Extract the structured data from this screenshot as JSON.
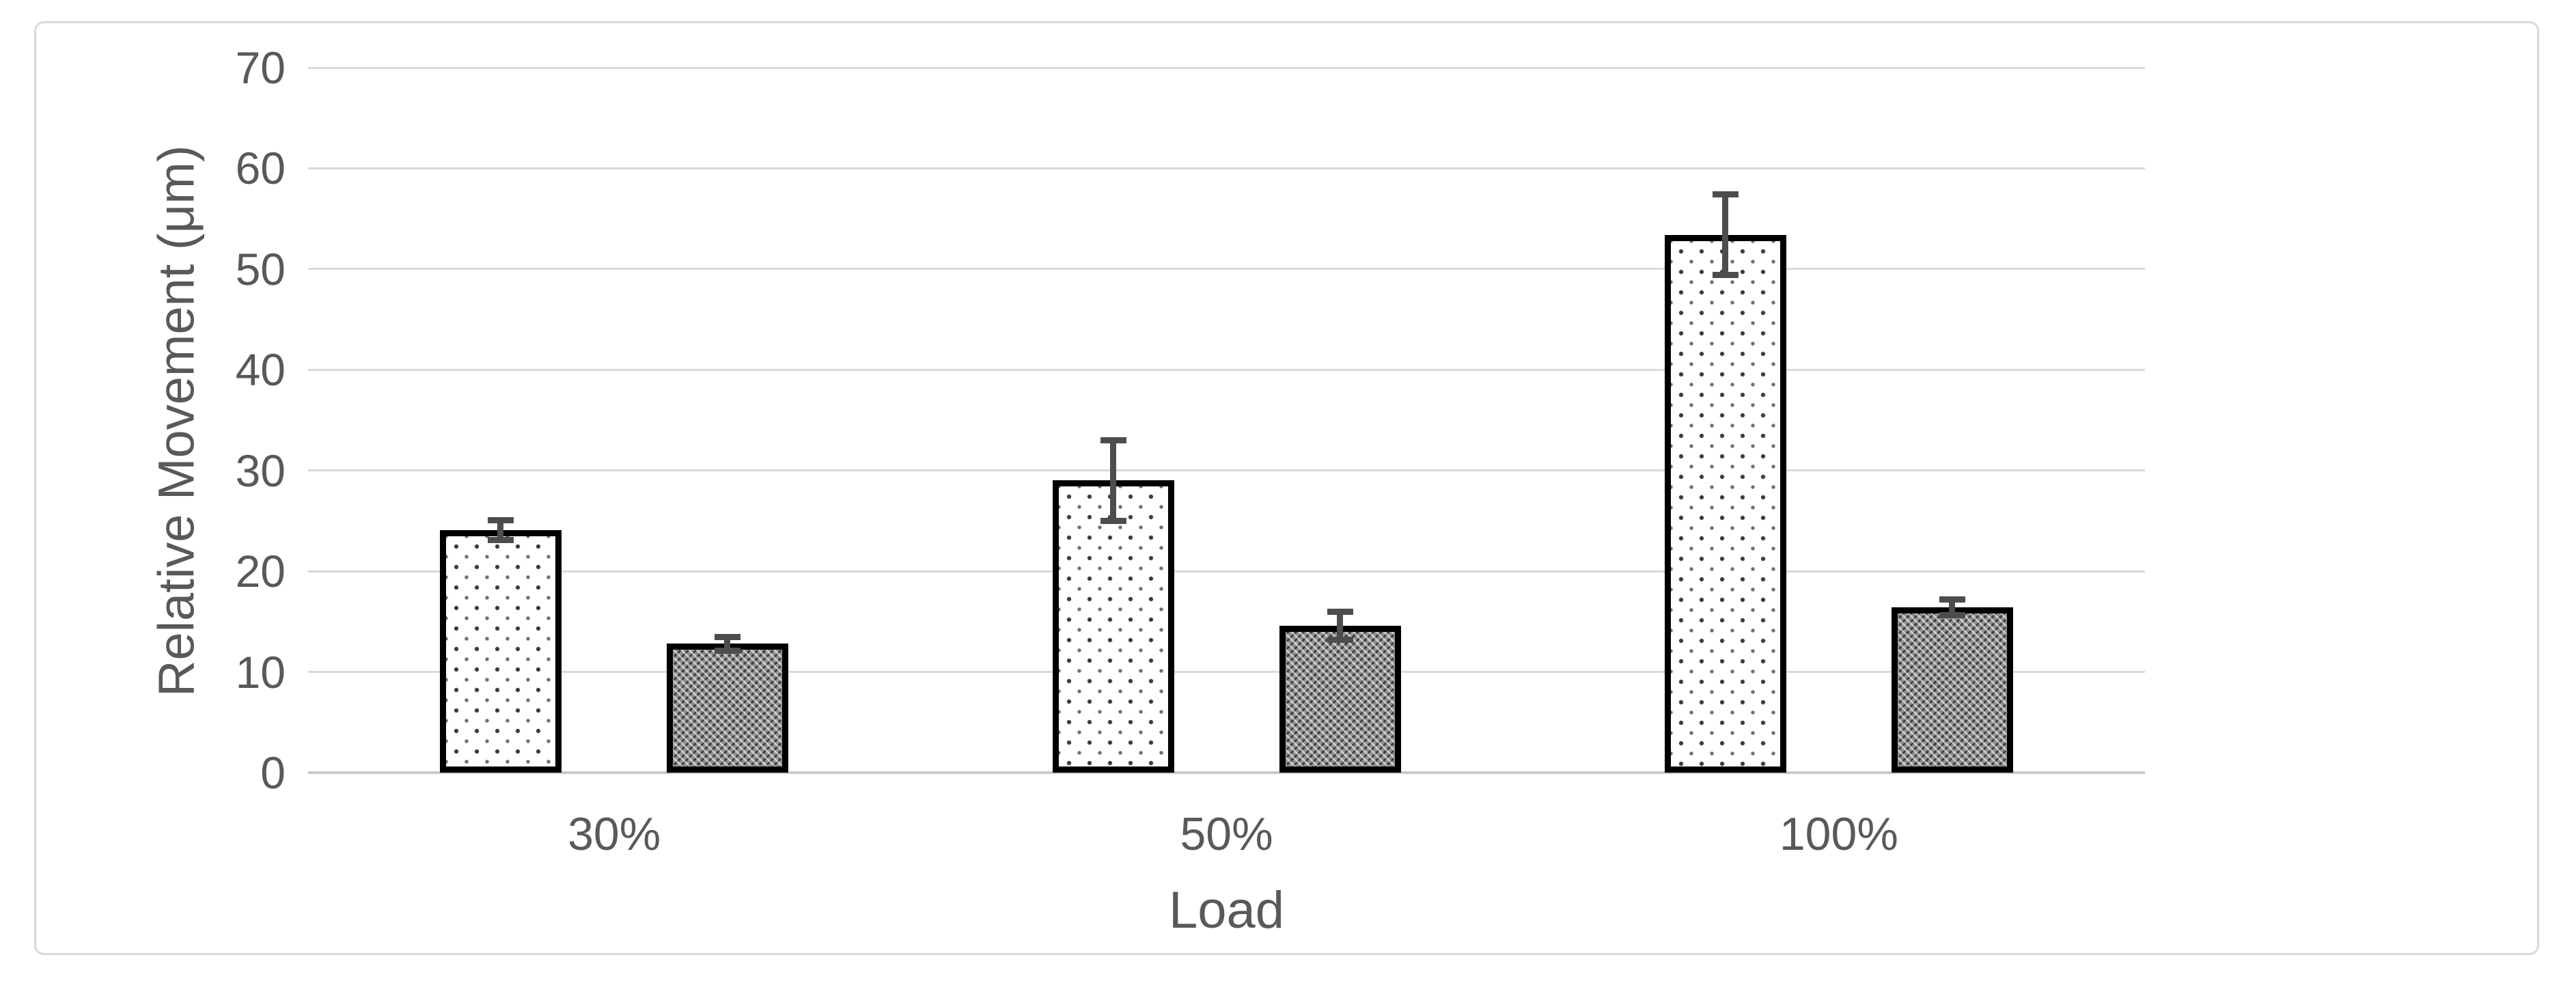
{
  "chart_data": {
    "type": "bar",
    "title": "",
    "xlabel": "Load",
    "ylabel": "Relative Movement (μm)",
    "categories": [
      "30%",
      "50%",
      "100%"
    ],
    "series": [
      {
        "name": "dotted-light-series",
        "pattern": "dotted",
        "values": [
          24.1,
          29.0,
          53.4
        ],
        "errors": [
          1.3,
          4.3,
          4.3
        ]
      },
      {
        "name": "hatched-dark-series",
        "pattern": "hatched",
        "values": [
          12.8,
          14.6,
          16.4
        ],
        "errors": [
          1.0,
          1.7,
          1.1
        ]
      }
    ],
    "ylim": [
      0,
      70
    ],
    "yticks": [
      0,
      10,
      20,
      30,
      40,
      50,
      60,
      70
    ],
    "grid": true,
    "legend_position": "none",
    "error_bars": true
  },
  "styles": {
    "background": "#ffffff",
    "frame_border": "#d9d9d9",
    "gridline": "#d9d9d9",
    "axis_line": "#c9c9c9",
    "text": "#595959",
    "bar_outline": "#000000",
    "error_bar": "#4d4d4d",
    "dot_color": "#3a3a3a",
    "hatch_base": "#8f8f8f"
  }
}
